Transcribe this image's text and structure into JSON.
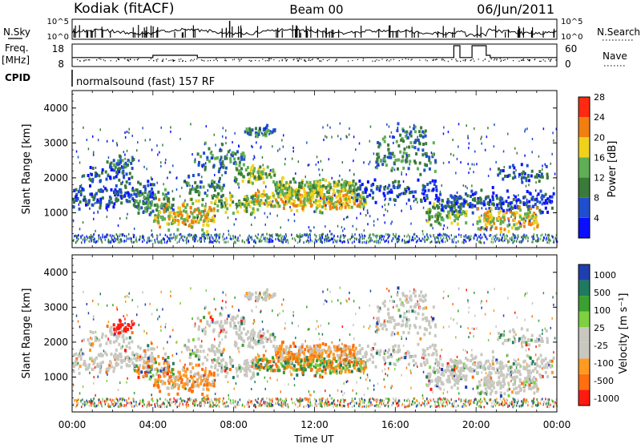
{
  "header": {
    "station": "Kodiak (fitACF)",
    "beam": "Beam 00",
    "date": "06/Jun/2011"
  },
  "strip_labels": {
    "nsky": "N.Sky",
    "nsearch": "N.Search",
    "freq": "Freq.",
    "freq_unit": "[MHz]",
    "nave": "Nave",
    "cpid": "CPID",
    "nsky_ticks": [
      "10^5",
      "10^0"
    ],
    "nsearch_ticks": [
      "10^5",
      "10^0"
    ],
    "freq_ticks": [
      "18",
      "8"
    ],
    "nave_ticks": [
      "60",
      "0"
    ],
    "cpid_text": "normalsound (fast) 157 RF"
  },
  "colors": {
    "power_scale": [
      "#0a10ff",
      "#1f4fcf",
      "#3a7a3a",
      "#5fae55",
      "#f0d21c",
      "#f07f10",
      "#ff2a10"
    ],
    "velocity_scale": [
      "#ff1a10",
      "#ff6f10",
      "#ff9a20",
      "#c8c8c0",
      "#c8c8c0",
      "#7fd040",
      "#3aa030",
      "#1f7a60",
      "#1f3fb0"
    ]
  },
  "chart_data": [
    {
      "type": "heatmap",
      "panel": "power",
      "ylabel": "Slant Range [km]",
      "xlim": [
        "00:00",
        "24:00"
      ],
      "ylim": [
        0,
        4500
      ],
      "y_ticks": [
        "1000",
        "2000",
        "3000",
        "4000"
      ],
      "colorbar_label": "Power [dB]",
      "colorbar_ticks": [
        "4",
        "8",
        "12",
        "16",
        "20",
        "24",
        "28"
      ]
    },
    {
      "type": "heatmap",
      "panel": "velocity",
      "ylabel": "Slant Range [km]",
      "xlim": [
        "00:00",
        "24:00"
      ],
      "ylim": [
        0,
        4500
      ],
      "y_ticks": [
        "1000",
        "2000",
        "3000",
        "4000"
      ],
      "colorbar_label": "Velocity [m s⁻¹]",
      "colorbar_ticks": [
        "1000",
        "500",
        "100",
        "25",
        "-25",
        "-100",
        "-500",
        "-1000"
      ],
      "xlabel": "Time UT",
      "x_ticks": [
        "00:00",
        "04:00",
        "08:00",
        "12:00",
        "16:00",
        "20:00",
        "00:00"
      ]
    }
  ]
}
